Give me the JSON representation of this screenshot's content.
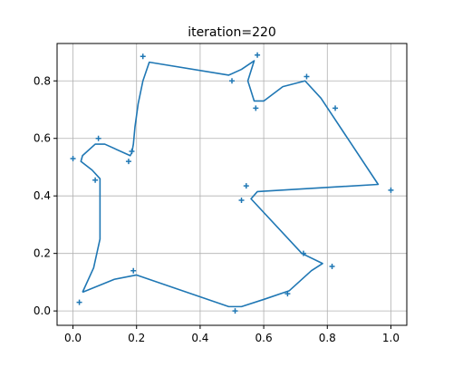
{
  "chart_data": {
    "type": "line",
    "title": "iteration=220",
    "xlabel": "",
    "ylabel": "",
    "xlim": [
      -0.05,
      1.05
    ],
    "ylim": [
      -0.05,
      0.93
    ],
    "xticks": [
      0.0,
      0.2,
      0.4,
      0.6,
      0.8,
      1.0
    ],
    "xtick_labels": [
      "0.0",
      "0.2",
      "0.4",
      "0.6",
      "0.8",
      "1.0"
    ],
    "yticks": [
      0.0,
      0.2,
      0.4,
      0.6,
      0.8
    ],
    "ytick_labels": [
      "0.0",
      "0.2",
      "0.4",
      "0.6",
      "0.8"
    ],
    "grid": true,
    "line_color": "#1f77b4",
    "marker_color": "#1f77b4",
    "path_series": {
      "x": [
        0.03,
        0.13,
        0.2,
        0.49,
        0.53,
        0.6,
        0.68,
        0.75,
        0.785,
        0.72,
        0.56,
        0.58,
        0.96,
        0.78,
        0.73,
        0.66,
        0.6,
        0.57,
        0.55,
        0.57,
        0.53,
        0.49,
        0.24,
        0.22,
        0.205,
        0.195,
        0.19,
        0.185,
        0.18,
        0.1,
        0.07,
        0.03,
        0.025,
        0.06,
        0.085,
        0.085,
        0.065,
        0.03
      ],
      "y": [
        0.065,
        0.11,
        0.125,
        0.015,
        0.015,
        0.04,
        0.07,
        0.14,
        0.165,
        0.2,
        0.39,
        0.415,
        0.44,
        0.74,
        0.8,
        0.78,
        0.73,
        0.73,
        0.8,
        0.87,
        0.84,
        0.82,
        0.865,
        0.8,
        0.72,
        0.64,
        0.58,
        0.55,
        0.54,
        0.58,
        0.58,
        0.54,
        0.52,
        0.49,
        0.46,
        0.25,
        0.15,
        0.065
      ]
    },
    "marker_series": {
      "x": [
        0.0,
        0.02,
        0.07,
        0.08,
        0.175,
        0.185,
        0.19,
        0.22,
        0.5,
        0.51,
        0.53,
        0.545,
        0.575,
        0.58,
        0.675,
        0.725,
        0.735,
        0.815,
        0.825,
        1.0
      ],
      "y": [
        0.53,
        0.03,
        0.455,
        0.6,
        0.52,
        0.555,
        0.14,
        0.885,
        0.8,
        0.0,
        0.385,
        0.435,
        0.705,
        0.89,
        0.06,
        0.2,
        0.815,
        0.155,
        0.705,
        0.42
      ]
    }
  }
}
